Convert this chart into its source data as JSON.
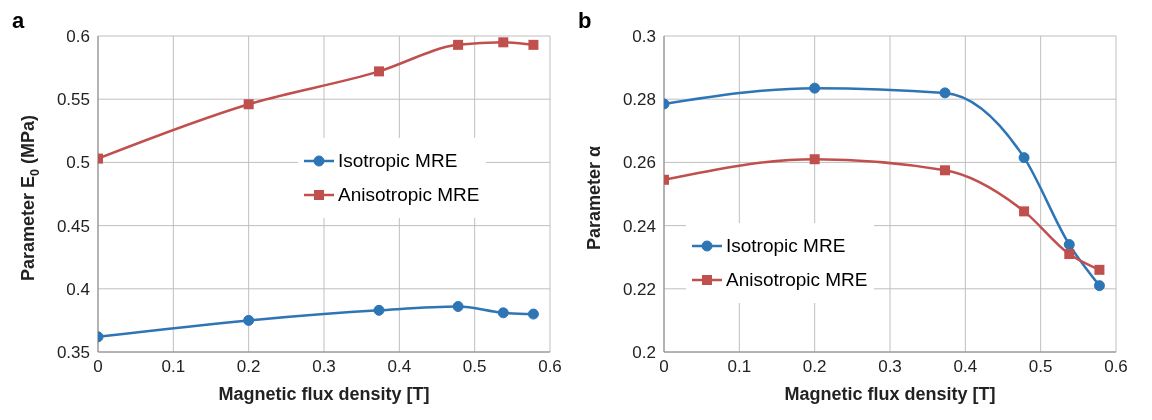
{
  "chart_data": [
    {
      "type": "line",
      "title": "a",
      "xlabel": "Magnetic flux density [T]",
      "ylabel": "Parameter E$_{0}$ (MPa)",
      "x": [
        0,
        0.2,
        0.373,
        0.478,
        0.538,
        0.578
      ],
      "xlim": [
        0,
        0.6
      ],
      "xticks": [
        0,
        0.1,
        0.2,
        0.3,
        0.4,
        0.5,
        0.6
      ],
      "ylim": [
        0.35,
        0.6
      ],
      "yticks": [
        0.35,
        0.4,
        0.45,
        0.5,
        0.55,
        0.6
      ],
      "grid": true,
      "legend": "right",
      "series": [
        {
          "name": "Isotropic MRE",
          "color": "#2e75b6",
          "marker": "circle",
          "values": [
            0.362,
            0.375,
            0.383,
            0.386,
            0.381,
            0.38
          ]
        },
        {
          "name": "Anisotropic MRE",
          "color": "#c0504d",
          "marker": "square",
          "values": [
            0.503,
            0.546,
            0.572,
            0.593,
            0.595,
            0.593
          ]
        }
      ]
    },
    {
      "type": "line",
      "title": "b",
      "xlabel": "Magnetic flux density [T]",
      "ylabel": "Parameter α",
      "x": [
        0,
        0.2,
        0.373,
        0.478,
        0.538,
        0.578
      ],
      "xlim": [
        0,
        0.6
      ],
      "xticks": [
        0,
        0.1,
        0.2,
        0.3,
        0.4,
        0.5,
        0.6
      ],
      "ylim": [
        0.2,
        0.3
      ],
      "yticks": [
        0.2,
        0.22,
        0.24,
        0.26,
        0.28,
        0.3
      ],
      "grid": true,
      "legend": "bottom left",
      "series": [
        {
          "name": "Isotropic MRE",
          "color": "#2e75b6",
          "marker": "circle",
          "values": [
            0.2785,
            0.2835,
            0.282,
            0.2615,
            0.234,
            0.221
          ]
        },
        {
          "name": "Anisotropic MRE",
          "color": "#c0504d",
          "marker": "square",
          "values": [
            0.2545,
            0.261,
            0.2575,
            0.2445,
            0.231,
            0.226
          ]
        }
      ]
    }
  ]
}
